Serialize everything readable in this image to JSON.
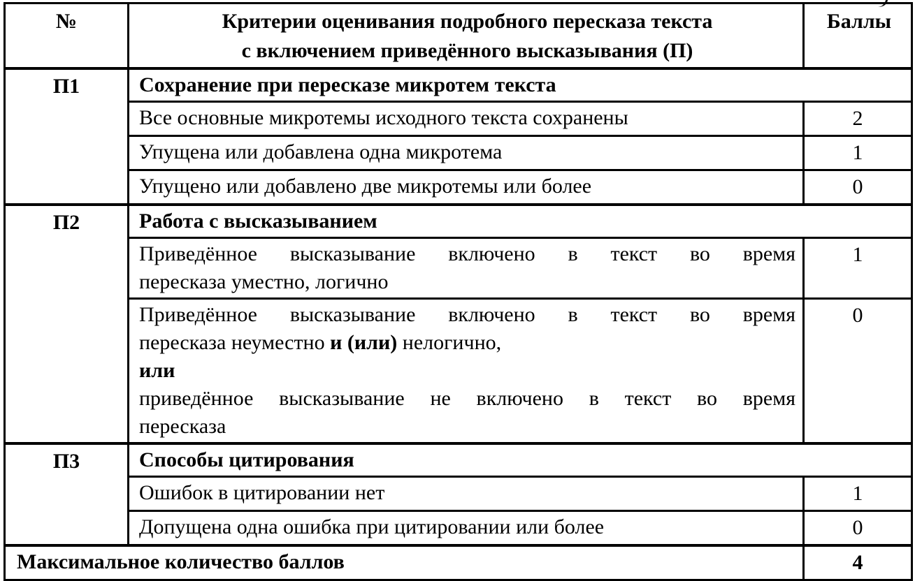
{
  "page": {
    "artifact_note": "small scan mark top-right"
  },
  "table": {
    "header": {
      "num": "№",
      "criteria_lines": [
        "Критерии оценивания подробного пересказа текста",
        "с включением приведённого высказывания (П)"
      ],
      "score": "Баллы"
    },
    "sections": [
      {
        "id": "П1",
        "title": "Сохранение при пересказе микротем текста",
        "rows": [
          {
            "text": "Все основные микротемы исходного текста сохранены",
            "score": "2"
          },
          {
            "text": "Упущена или добавлена одна микротема",
            "score": "1"
          },
          {
            "text": "Упущено или добавлено две микротемы или более",
            "score": "0"
          }
        ]
      },
      {
        "id": "П2",
        "title": "Работа с высказыванием",
        "rows": [
          {
            "score": "1",
            "lines": [
              {
                "justify": true,
                "segments": [
                  {
                    "t": "Приведённое высказывание включено в текст во время"
                  }
                ]
              },
              {
                "justify": false,
                "segments": [
                  {
                    "t": "пересказа уместно, логично"
                  }
                ]
              }
            ]
          },
          {
            "score": "0",
            "lines": [
              {
                "justify": true,
                "segments": [
                  {
                    "t": "Приведённое высказывание включено в текст во время"
                  }
                ]
              },
              {
                "justify": false,
                "segments": [
                  {
                    "t": "пересказа неуместно "
                  },
                  {
                    "t": "и (или)",
                    "b": true
                  },
                  {
                    "t": " нелогично,"
                  }
                ]
              },
              {
                "justify": false,
                "segments": [
                  {
                    "t": "или",
                    "b": true
                  }
                ]
              },
              {
                "justify": true,
                "segments": [
                  {
                    "t": "приведённое высказывание не включено в текст во время"
                  }
                ]
              },
              {
                "justify": false,
                "segments": [
                  {
                    "t": "пересказа"
                  }
                ]
              }
            ]
          }
        ]
      },
      {
        "id": "П3",
        "title": "Способы цитирования",
        "rows": [
          {
            "text": "Ошибок в цитировании нет",
            "score": "1"
          },
          {
            "text": "Допущена одна ошибка при цитировании или более",
            "score": "0"
          }
        ]
      }
    ],
    "footer": {
      "label": "Максимальное количество баллов",
      "score": "4"
    }
  }
}
